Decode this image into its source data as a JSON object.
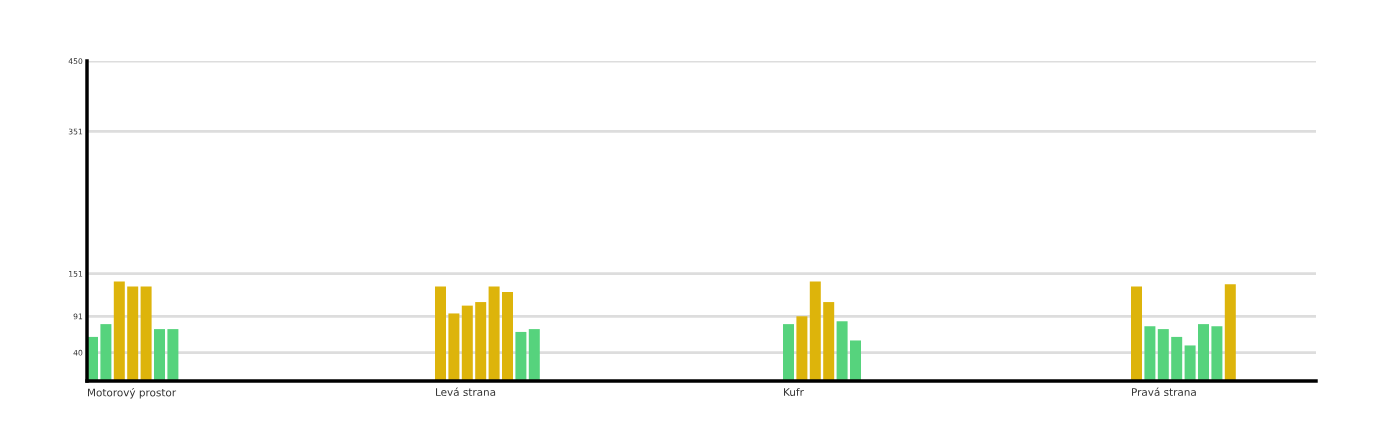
{
  "chart_data": {
    "type": "bar",
    "categories": [
      "Motorový prostor",
      "Levá strana",
      "Kufr",
      "Pravá strana"
    ],
    "ylim": [
      0,
      450
    ],
    "yticks": [
      40,
      91,
      151,
      351,
      450
    ],
    "grid": "y",
    "legend": false,
    "series": [
      {
        "values": [
          62,
          133,
          80,
          133
        ],
        "colors": [
          "#56d37d",
          "#ddb40b",
          "#56d37d",
          "#ddb40b"
        ]
      },
      {
        "values": [
          80,
          95,
          91,
          77
        ],
        "colors": [
          "#56d37d",
          "#ddb40b",
          "#ddb40b",
          "#56d37d"
        ]
      },
      {
        "values": [
          140,
          106,
          140,
          73
        ],
        "colors": [
          "#ddb40b",
          "#ddb40b",
          "#ddb40b",
          "#56d37d"
        ]
      },
      {
        "values": [
          133,
          111,
          111,
          62
        ],
        "colors": [
          "#ddb40b",
          "#ddb40b",
          "#ddb40b",
          "#56d37d"
        ]
      },
      {
        "values": [
          133,
          133,
          84,
          50
        ],
        "colors": [
          "#ddb40b",
          "#ddb40b",
          "#56d37d",
          "#56d37d"
        ]
      },
      {
        "values": [
          73,
          125,
          57,
          80
        ],
        "colors": [
          "#56d37d",
          "#ddb40b",
          "#56d37d",
          "#56d37d"
        ]
      },
      {
        "values": [
          73,
          69,
          null,
          77
        ],
        "colors": [
          "#56d37d",
          "#56d37d",
          null,
          "#56d37d"
        ]
      },
      {
        "values": [
          null,
          73,
          null,
          136
        ],
        "colors": [
          null,
          "#56d37d",
          null,
          "#ddb40b"
        ]
      }
    ]
  }
}
